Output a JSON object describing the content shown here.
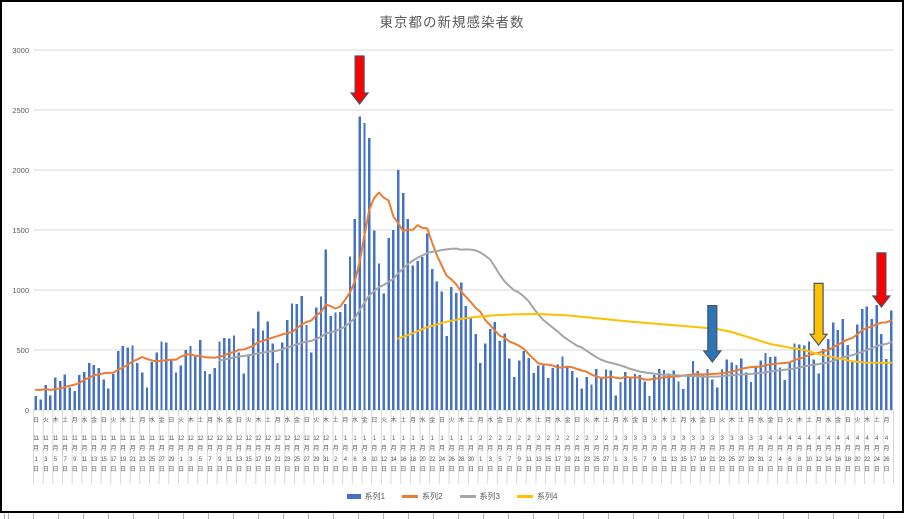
{
  "title": "東京都の新規感染者数",
  "colors": {
    "bar": "#4472C4",
    "line2": "#ED7D31",
    "line3": "#A5A5A5",
    "line4": "#FFC000",
    "grid": "#D9D9D9",
    "axis_text": "#595959",
    "title_text": "#595959",
    "arrow_red": "#FF0000",
    "arrow_blue": "#2E75B6",
    "arrow_yellow": "#FFC000",
    "arrow_border": "#44546A",
    "frame": "#000000"
  },
  "legend": {
    "items": [
      {
        "label": "系列1",
        "color": "#4472C4",
        "type": "bar"
      },
      {
        "label": "系列2",
        "color": "#ED7D31",
        "type": "line"
      },
      {
        "label": "系列3",
        "color": "#A5A5A5",
        "type": "line"
      },
      {
        "label": "系列4",
        "color": "#FFC000",
        "type": "line"
      }
    ]
  },
  "chart_data": {
    "type": "combo (daily bars + moving-average lines)",
    "title": "東京都の新規感染者数",
    "grid": "horizontal gridlines on",
    "legend_position": "bottom",
    "y_axis": {
      "min": 0,
      "max": 3000,
      "step": 500,
      "ticks": [
        0,
        500,
        1000,
        1500,
        2000,
        2500,
        3000
      ]
    },
    "x_axis": {
      "description": "daily categories 11/1 - 4/27, labelled every 2nd day with weekday + month/day",
      "label_every_n_days": 2,
      "weekday_cycle": "日月火水木金土",
      "first_day_weekday_index": 0,
      "month_suffix": "月",
      "day_suffix": "日",
      "months": [
        {
          "month": 11,
          "days": 30
        },
        {
          "month": 12,
          "days": 31
        },
        {
          "month": 1,
          "days": 31
        },
        {
          "month": 2,
          "days": 28
        },
        {
          "month": 3,
          "days": 31
        },
        {
          "month": 4,
          "days": 27
        }
      ]
    },
    "series": [
      {
        "name": "系列1",
        "type": "bar",
        "color": "#4472C4",
        "values": [
          116,
          87,
          209,
          122,
          269,
          242,
          294,
          189,
          157,
          293,
          317,
          393,
          374,
          352,
          255,
          180,
          298,
          493,
          534,
          522,
          539,
          391,
          314,
          186,
          401,
          481,
          570,
          561,
          418,
          311,
          372,
          500,
          533,
          449,
          584,
          327,
          299,
          352,
          572,
          602,
          595,
          621,
          480,
          305,
          460,
          678,
          822,
          664,
          736,
          556,
          392,
          563,
          748,
          888,
          884,
          949,
          708,
          481,
          856,
          944,
          1337,
          783,
          814,
          816,
          884,
          1278,
          1591,
          2447,
          2392,
          2268,
          1494,
          1219,
          970,
          1433,
          1502,
          2001,
          1809,
          1592,
          1204,
          1240,
          1274,
          1471,
          1175,
          1070,
          986,
          618,
          1026,
          973,
          1064,
          868,
          769,
          633,
          393,
          556,
          676,
          734,
          577,
          639,
          429,
          276,
          412,
          491,
          434,
          307,
          369,
          371,
          266,
          350,
          378,
          445,
          353,
          327,
          272,
          178,
          275,
          213,
          340,
          270,
          337,
          329,
          121,
          232,
          316,
          279,
          301,
          293,
          237,
          116,
          290,
          340,
          335,
          304,
          330,
          239,
          175,
          300,
          409,
          323,
          303,
          342,
          256,
          187,
          337,
          420,
          394,
          376,
          430,
          313,
          234,
          364,
          414,
          475,
          440,
          446,
          355,
          249,
          399,
          555,
          545,
          537,
          570,
          421,
          306,
          510,
          591,
          729,
          667,
          759,
          543,
          405,
          711,
          843,
          861,
          759,
          876,
          635,
          425,
          828
        ]
      },
      {
        "name": "系列2",
        "type": "line",
        "color": "#ED7D31",
        "derivation": "7-day trailing moving average of 系列1",
        "window": 7,
        "seed_prev_values": [
          102,
          158,
          171,
          221,
          203,
          215
        ]
      },
      {
        "name": "系列3",
        "type": "line",
        "color": "#A5A5A5",
        "derivation": "28-day trailing moving average of 系列1",
        "window": 28,
        "start_index": 38
      },
      {
        "name": "系列4",
        "type": "line",
        "color": "#FFC000",
        "derivation": "long-window average, digitized control points [day_index, value]",
        "points": [
          [
            75,
            595
          ],
          [
            78,
            640
          ],
          [
            81,
            690
          ],
          [
            85,
            735
          ],
          [
            88,
            760
          ],
          [
            91,
            775
          ],
          [
            95,
            790
          ],
          [
            99,
            797
          ],
          [
            104,
            800
          ],
          [
            110,
            788
          ],
          [
            116,
            765
          ],
          [
            123,
            737
          ],
          [
            129,
            717
          ],
          [
            135,
            697
          ],
          [
            141,
            675
          ],
          [
            144,
            650
          ],
          [
            148,
            600
          ],
          [
            152,
            550
          ],
          [
            156,
            520
          ],
          [
            159,
            500
          ],
          [
            162,
            465
          ],
          [
            166,
            432
          ],
          [
            169,
            405
          ],
          [
            172,
            395
          ],
          [
            177,
            393
          ]
        ]
      }
    ],
    "annotations": {
      "arrows": [
        {
          "name": "red-down-arrow-jan7-peak",
          "day_index": 67,
          "value_top": 2950,
          "value_tip": 2550,
          "fill": "#FF0000"
        },
        {
          "name": "blue-down-arrow-mar21",
          "day_index": 140,
          "value_top": 870,
          "value_tip": 400,
          "fill": "#2E75B6"
        },
        {
          "name": "yellow-down-arrow-apr12",
          "day_index": 162,
          "value_top": 1055,
          "value_tip": 540,
          "fill": "#FFC000"
        },
        {
          "name": "red-down-arrow-apr25",
          "day_index": 175,
          "value_top": 1310,
          "value_tip": 858,
          "fill": "#FF0000"
        }
      ]
    }
  }
}
